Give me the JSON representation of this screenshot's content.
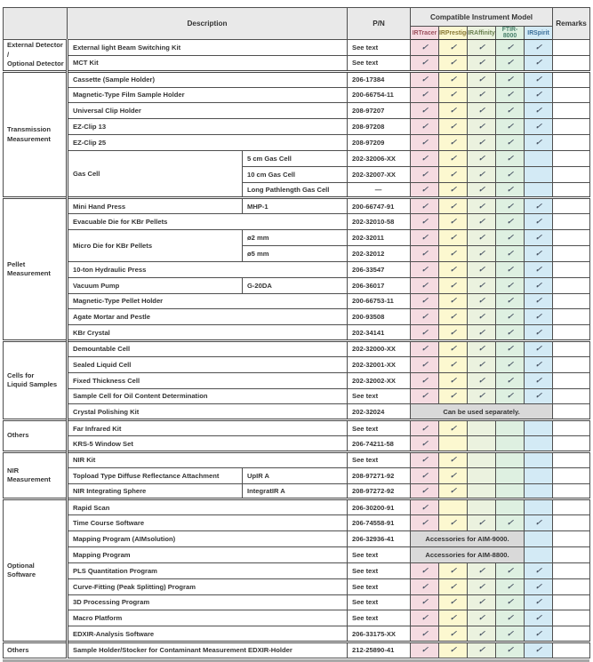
{
  "table": {
    "check_symbol": "✓",
    "colors": {
      "header_bg": "#e9e9e9",
      "note_bg": "#d9d9d9",
      "check": "#4a5565",
      "grid": "#4f4f4f",
      "bottom_bar": "#a8a8a8",
      "text": "#333333"
    },
    "header": {
      "description": "Description",
      "pn": "P/N",
      "compatible": "Compatible Instrument Model",
      "remarks": "Remarks",
      "models": [
        {
          "label": "IRTracer",
          "bg": "#f5dbe1",
          "text_color": "#9c4f5c"
        },
        {
          "label": "IRPrestige",
          "bg": "#fcf8d0",
          "text_color": "#8a7a35"
        },
        {
          "label": "IRAffinity",
          "bg": "#ebf2df",
          "text_color": "#69804f"
        },
        {
          "label": "FTIR-8000",
          "bg": "#def0e1",
          "text_color": "#47806b"
        },
        {
          "label": "IRSpirit",
          "bg": "#d3eaf5",
          "text_color": "#3a6e99"
        }
      ]
    },
    "rows": [
      {
        "cat": {
          "label": "External Detector /\nOptional Detector",
          "span": 2
        },
        "desc": "External light Beam Switching Kit",
        "full": true,
        "pn": "See text",
        "checks": [
          1,
          1,
          1,
          1,
          1
        ]
      },
      {
        "desc": "MCT Kit",
        "full": true,
        "pn": "See text",
        "checks": [
          1,
          1,
          1,
          1,
          1
        ]
      },
      {
        "cat": {
          "label": "Transmission\nMeasurement",
          "span": 8
        },
        "desc": "Cassette (Sample Holder)",
        "full": true,
        "pn": "206-17384",
        "checks": [
          1,
          1,
          1,
          1,
          1
        ]
      },
      {
        "desc": "Magnetic-Type Film Sample Holder",
        "full": true,
        "pn": "200-66754-11",
        "checks": [
          1,
          1,
          1,
          1,
          1
        ]
      },
      {
        "desc": "Universal Clip Holder",
        "full": true,
        "pn": "208-97207",
        "checks": [
          1,
          1,
          1,
          1,
          1
        ]
      },
      {
        "desc": "EZ-Clip 13",
        "full": true,
        "pn": "208-97208",
        "checks": [
          1,
          1,
          1,
          1,
          1
        ]
      },
      {
        "desc": "EZ-Clip 25",
        "full": true,
        "pn": "208-97209",
        "checks": [
          1,
          1,
          1,
          1,
          1
        ]
      },
      {
        "desc": {
          "label": "Gas Cell",
          "span": 3
        },
        "sub": "5 cm Gas Cell",
        "pn": "202-32006-XX",
        "checks": [
          1,
          1,
          1,
          1,
          0
        ]
      },
      {
        "sub": "10 cm Gas Cell",
        "pn": "202-32007-XX",
        "checks": [
          1,
          1,
          1,
          1,
          0
        ]
      },
      {
        "sub": "Long Pathlength Gas Cell",
        "pn": "—",
        "checks": [
          1,
          1,
          1,
          1,
          0
        ]
      },
      {
        "cat": {
          "label": "Pellet\nMeasurement",
          "span": 9
        },
        "desc": "Mini Hand Press",
        "sub": "MHP-1",
        "pn": "200-66747-91",
        "checks": [
          1,
          1,
          1,
          1,
          1
        ]
      },
      {
        "desc": "Evacuable Die for KBr Pellets",
        "full": true,
        "pn": "202-32010-58",
        "checks": [
          1,
          1,
          1,
          1,
          1
        ]
      },
      {
        "desc": {
          "label": "Micro Die for KBr Pellets",
          "span": 2
        },
        "sub": "ø2 mm",
        "pn": "202-32011",
        "checks": [
          1,
          1,
          1,
          1,
          1
        ]
      },
      {
        "sub": "ø5 mm",
        "pn": "202-32012",
        "checks": [
          1,
          1,
          1,
          1,
          1
        ]
      },
      {
        "desc": "10-ton Hydraulic Press",
        "full": true,
        "pn": "206-33547",
        "checks": [
          1,
          1,
          1,
          1,
          1
        ]
      },
      {
        "desc": "Vacuum Pump",
        "sub": "G-20DA",
        "pn": "206-36017",
        "checks": [
          1,
          1,
          1,
          1,
          1
        ]
      },
      {
        "desc": "Magnetic-Type Pellet Holder",
        "full": true,
        "pn": "200-66753-11",
        "checks": [
          1,
          1,
          1,
          1,
          1
        ]
      },
      {
        "desc": "Agate Mortar and Pestle",
        "full": true,
        "pn": "200-93508",
        "checks": [
          1,
          1,
          1,
          1,
          1
        ]
      },
      {
        "desc": "KBr Crystal",
        "full": true,
        "pn": "202-34141",
        "checks": [
          1,
          1,
          1,
          1,
          1
        ]
      },
      {
        "cat": {
          "label": "Cells for\nLiquid Samples",
          "span": 5
        },
        "desc": "Demountable Cell",
        "full": true,
        "pn": "202-32000-XX",
        "checks": [
          1,
          1,
          1,
          1,
          1
        ]
      },
      {
        "desc": "Sealed Liquid Cell",
        "full": true,
        "pn": "202-32001-XX",
        "checks": [
          1,
          1,
          1,
          1,
          1
        ]
      },
      {
        "desc": "Fixed Thickness Cell",
        "full": true,
        "pn": "202-32002-XX",
        "checks": [
          1,
          1,
          1,
          1,
          1
        ]
      },
      {
        "desc": "Sample Cell for Oil Content Determination",
        "full": true,
        "pn": "See text",
        "checks": [
          1,
          1,
          1,
          1,
          1
        ]
      },
      {
        "desc": "Crystal Polishing Kit",
        "full": true,
        "pn": "202-32024",
        "note": {
          "text": "Can be used separately.",
          "span": 5,
          "empty_after": 0
        }
      },
      {
        "cat": {
          "label": "Others",
          "span": 2
        },
        "desc": "Far Infrared Kit",
        "full": true,
        "pn": "See text",
        "checks": [
          1,
          1,
          0,
          0,
          0
        ]
      },
      {
        "desc": "KRS-5 Window Set",
        "full": true,
        "pn": "206-74211-58",
        "checks": [
          1,
          0,
          0,
          0,
          0
        ]
      },
      {
        "cat": {
          "label": "NIR\nMeasurement",
          "span": 3
        },
        "desc": "NIR Kit",
        "full": true,
        "pn": "See text",
        "checks": [
          1,
          1,
          0,
          0,
          0
        ]
      },
      {
        "desc": "Topload Type Diffuse Reflectance Attachment",
        "sub": "UpIR A",
        "pn": "208-97271-92",
        "checks": [
          1,
          1,
          0,
          0,
          0
        ]
      },
      {
        "desc": "NIR Integrating Sphere",
        "sub": "IntegratIR A",
        "pn": "208-97272-92",
        "checks": [
          1,
          1,
          0,
          0,
          0
        ]
      },
      {
        "cat": {
          "label": "Optional\nSoftware",
          "span": 9
        },
        "desc": "Rapid Scan",
        "full": true,
        "pn": "206-30200-91",
        "checks": [
          1,
          0,
          0,
          0,
          0
        ]
      },
      {
        "desc": "Time Course Software",
        "full": true,
        "pn": "206-74558-91",
        "checks": [
          1,
          1,
          1,
          1,
          1
        ]
      },
      {
        "desc": "Mapping Program (AIMsolution)",
        "full": true,
        "pn": "206-32936-41",
        "note": {
          "text": "Accessories for AIM-9000.",
          "span": 4,
          "empty_after": 1
        }
      },
      {
        "desc": "Mapping Program",
        "full": true,
        "pn": "See text",
        "note": {
          "text": "Accessories for AIM-8800.",
          "span": 4,
          "empty_after": 1
        }
      },
      {
        "desc": "PLS Quantitation Program",
        "full": true,
        "pn": "See text",
        "checks": [
          1,
          1,
          1,
          1,
          1
        ]
      },
      {
        "desc": "Curve-Fitting (Peak Splitting) Program",
        "full": true,
        "pn": "See text",
        "checks": [
          1,
          1,
          1,
          1,
          1
        ]
      },
      {
        "desc": "3D Processing Program",
        "full": true,
        "pn": "See text",
        "checks": [
          1,
          1,
          1,
          1,
          1
        ]
      },
      {
        "desc": "Macro Platform",
        "full": true,
        "pn": "See text",
        "checks": [
          1,
          1,
          1,
          1,
          1
        ]
      },
      {
        "desc": "EDXIR-Analysis Software",
        "full": true,
        "pn": "206-33175-XX",
        "checks": [
          1,
          1,
          1,
          1,
          1
        ]
      },
      {
        "cat": {
          "label": "Others",
          "span": 1
        },
        "desc": "Sample Holder/Stocker for Contaminant Measurement EDXIR-Holder",
        "full": true,
        "pn": "212-25890-41",
        "checks": [
          1,
          1,
          1,
          1,
          1
        ]
      }
    ]
  }
}
